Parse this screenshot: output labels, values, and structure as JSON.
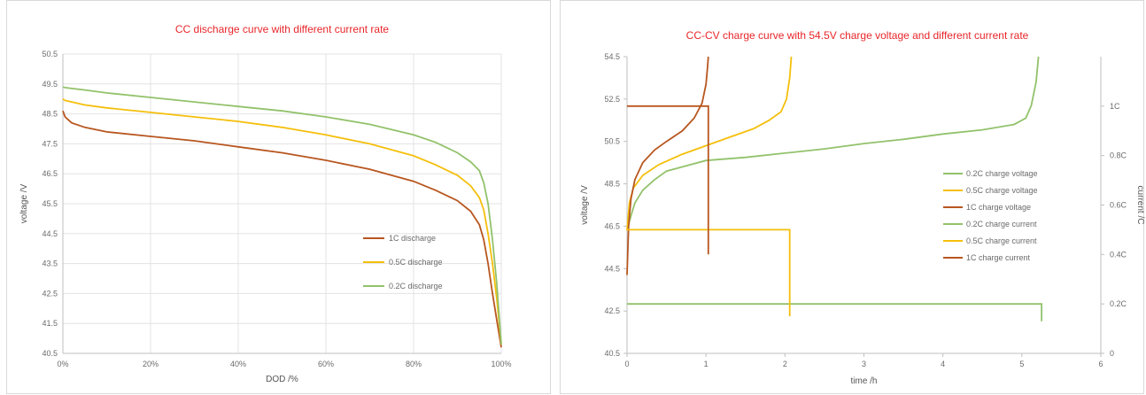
{
  "chart_data": [
    {
      "type": "line",
      "title": "CC discharge curve with different current rate",
      "xlabel": "DOD /%",
      "ylabel": "voltage /V",
      "xlim": [
        0,
        100
      ],
      "ylim": [
        40.5,
        50.5
      ],
      "xticks": [
        "0%",
        "20%",
        "40%",
        "60%",
        "80%",
        "100%"
      ],
      "yticks": [
        "40.5",
        "41.5",
        "42.5",
        "43.5",
        "44.5",
        "45.5",
        "46.5",
        "47.5",
        "48.5",
        "49.5",
        "50.5"
      ],
      "grid": true,
      "legend_position": "bottom-right",
      "series": [
        {
          "name": "1C discharge",
          "color": "#b8561f",
          "x": [
            0,
            0.5,
            2,
            5,
            10,
            20,
            30,
            40,
            50,
            60,
            70,
            80,
            85,
            90,
            93,
            95,
            96,
            97,
            98,
            99,
            100
          ],
          "y": [
            48.6,
            48.4,
            48.2,
            48.05,
            47.9,
            47.75,
            47.6,
            47.4,
            47.2,
            46.95,
            46.65,
            46.25,
            45.95,
            45.6,
            45.25,
            44.8,
            44.3,
            43.5,
            42.5,
            41.6,
            40.7
          ]
        },
        {
          "name": "0.5C discharge",
          "color": "#f5bf0c",
          "x": [
            0,
            0.5,
            2,
            5,
            10,
            20,
            30,
            40,
            50,
            60,
            70,
            80,
            85,
            90,
            93,
            95,
            96,
            97,
            98,
            99,
            100
          ],
          "y": [
            49.0,
            48.95,
            48.9,
            48.8,
            48.7,
            48.55,
            48.4,
            48.25,
            48.05,
            47.8,
            47.5,
            47.1,
            46.8,
            46.45,
            46.1,
            45.7,
            45.3,
            44.5,
            43.5,
            42.3,
            40.8
          ]
        },
        {
          "name": "0.2C discharge",
          "color": "#92c26b",
          "x": [
            0,
            0.5,
            2,
            5,
            10,
            20,
            30,
            40,
            50,
            60,
            70,
            80,
            85,
            90,
            93,
            95,
            96,
            97,
            98,
            99,
            100
          ],
          "y": [
            49.4,
            49.38,
            49.35,
            49.3,
            49.2,
            49.05,
            48.9,
            48.75,
            48.6,
            48.4,
            48.15,
            47.8,
            47.55,
            47.2,
            46.9,
            46.6,
            46.2,
            45.5,
            44.3,
            42.8,
            40.8
          ]
        }
      ]
    },
    {
      "type": "line",
      "title": "CC-CV charge curve with 54.5V charge voltage and different current rate",
      "xlabel": "time /h",
      "ylabel": "voltage /V",
      "y2label": "current /C",
      "xlim": [
        0,
        6
      ],
      "ylim": [
        40.5,
        54.5
      ],
      "y2lim": [
        0,
        1.2
      ],
      "xticks": [
        "0",
        "1",
        "2",
        "3",
        "4",
        "5",
        "6"
      ],
      "yticks": [
        "40.5",
        "42.5",
        "44.5",
        "46.5",
        "48.5",
        "50.5",
        "52.5",
        "54.5"
      ],
      "y2ticks": [
        "0",
        "0.2C",
        "0.4C",
        "0.6C",
        "0.8C",
        "1C"
      ],
      "grid": false,
      "legend_position": "right",
      "series": [
        {
          "name": "0.2C charge voltage",
          "color": "#92c26b",
          "axis": "left",
          "x": [
            0,
            0.05,
            0.1,
            0.2,
            0.35,
            0.5,
            0.8,
            1.0,
            1.5,
            2.0,
            2.5,
            3.0,
            3.5,
            4.0,
            4.5,
            4.9,
            5.05,
            5.12,
            5.18,
            5.21
          ],
          "y": [
            46.3,
            47.0,
            47.6,
            48.2,
            48.7,
            49.1,
            49.4,
            49.6,
            49.75,
            49.95,
            50.15,
            50.4,
            50.6,
            50.85,
            51.05,
            51.3,
            51.6,
            52.2,
            53.3,
            54.5
          ]
        },
        {
          "name": "0.5C charge voltage",
          "color": "#f5bf0c",
          "axis": "left",
          "x": [
            0,
            0.03,
            0.08,
            0.2,
            0.4,
            0.7,
            1.0,
            1.3,
            1.6,
            1.8,
            1.95,
            2.02,
            2.06,
            2.08
          ],
          "y": [
            46.3,
            47.6,
            48.3,
            48.9,
            49.4,
            49.9,
            50.3,
            50.7,
            51.1,
            51.5,
            51.9,
            52.5,
            53.5,
            54.5
          ]
        },
        {
          "name": "1C charge voltage",
          "color": "#b8561f",
          "axis": "left",
          "x": [
            0,
            0.02,
            0.05,
            0.1,
            0.2,
            0.35,
            0.5,
            0.7,
            0.85,
            0.95,
            1.0,
            1.02,
            1.03
          ],
          "y": [
            44.2,
            46.5,
            47.8,
            48.7,
            49.5,
            50.1,
            50.5,
            51.0,
            51.6,
            52.3,
            53.2,
            54.0,
            54.5
          ]
        },
        {
          "name": "0.2C charge current",
          "color": "#92c26b",
          "axis": "right",
          "x": [
            0,
            5.25,
            5.25
          ],
          "y": [
            0.2,
            0.2,
            0.13
          ]
        },
        {
          "name": "0.5C charge current",
          "color": "#f5bf0c",
          "axis": "right",
          "x": [
            0,
            2.06,
            2.06
          ],
          "y": [
            0.5,
            0.5,
            0.15
          ]
        },
        {
          "name": "1C charge current",
          "color": "#b8561f",
          "axis": "right",
          "x": [
            0,
            1.03,
            1.03
          ],
          "y": [
            1.0,
            1.0,
            0.4
          ]
        }
      ]
    }
  ]
}
